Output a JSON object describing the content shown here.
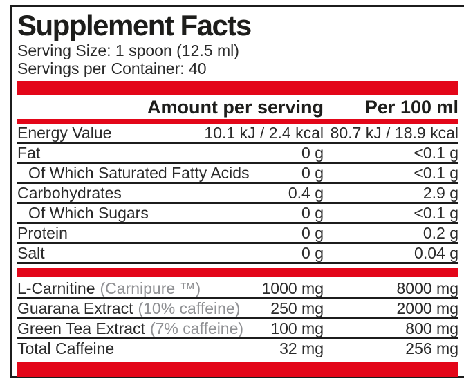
{
  "label": {
    "title": "Supplement Facts",
    "serving_size": "Serving Size: 1 spoon (12.5 ml)",
    "servings_per_container": "Servings per Container: 40",
    "columns": {
      "amount": "Amount per serving",
      "per100": "Per 100 ml"
    },
    "nutrients": [
      {
        "name": "Energy Value",
        "note": "",
        "amount": "10.1 kJ / 2.4 kcal",
        "per100": "80.7 kJ / 18.9 kcal",
        "indent": false
      },
      {
        "name": "Fat",
        "note": "",
        "amount": "0 g",
        "per100": "<0.1 g",
        "indent": false
      },
      {
        "name": "Of Which Saturated Fatty Acids",
        "note": "",
        "amount": "0 g",
        "per100": "<0.1 g",
        "indent": true
      },
      {
        "name": "Carbohydrates",
        "note": "",
        "amount": "0.4 g",
        "per100": "2.9 g",
        "indent": false
      },
      {
        "name": "Of Which Sugars",
        "note": "",
        "amount": "0 g",
        "per100": "<0.1 g",
        "indent": true
      },
      {
        "name": "Protein",
        "note": "",
        "amount": "0 g",
        "per100": "0.2 g",
        "indent": false
      },
      {
        "name": "Salt",
        "note": "",
        "amount": "0 g",
        "per100": "0.04 g",
        "indent": false
      }
    ],
    "ingredients": [
      {
        "name": "L-Carnitine",
        "note": "(Carnipure ™)",
        "amount": "1000 mg",
        "per100": "8000 mg",
        "indent": false
      },
      {
        "name": "Guarana Extract",
        "note": "(10% caffeine)",
        "amount": "250 mg",
        "per100": "2000 mg",
        "indent": false
      },
      {
        "name": "Green Tea Extract",
        "note": "(7% caffeine)",
        "amount": "100 mg",
        "per100": "800 mg",
        "indent": false
      },
      {
        "name": "Total Caffeine",
        "note": "",
        "amount": "32 mg",
        "per100": "256 mg",
        "indent": false
      }
    ],
    "colors": {
      "accent_red": "#e30619",
      "text": "#2a2a2a",
      "muted": "#8f9093",
      "rule": "#1c1c1c"
    }
  }
}
